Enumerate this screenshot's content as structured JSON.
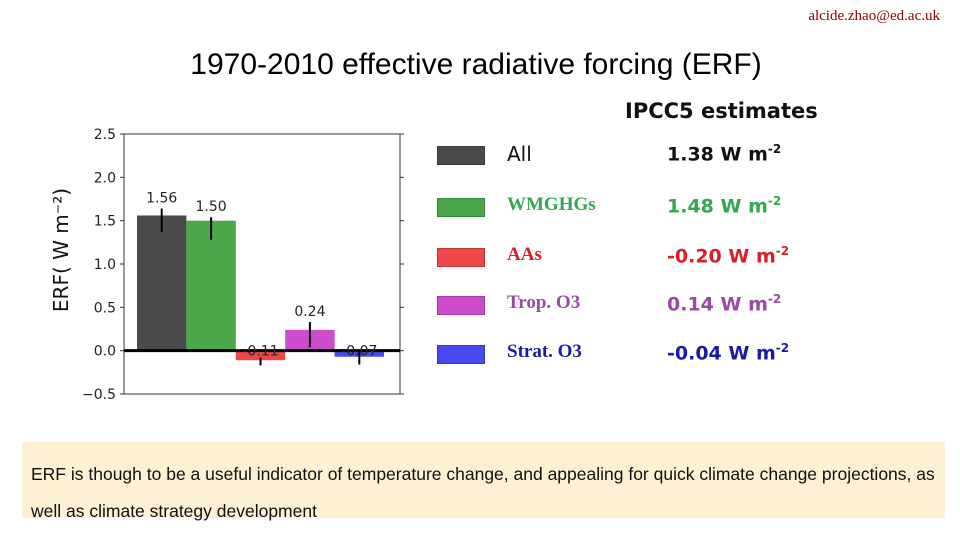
{
  "header": {
    "email": "alcide.zhao@ed.ac.uk",
    "title": "1970-2010 effective radiative forcing (ERF)"
  },
  "chart_data": {
    "type": "bar",
    "ylabel": "ERF( W m⁻²)",
    "ylim": [
      -0.5,
      2.5
    ],
    "yticks": [
      "2.5",
      "2.0",
      "1.5",
      "1.0",
      "0.5",
      "0.0",
      "−0.5"
    ],
    "yticks_values": [
      2.5,
      2.0,
      1.5,
      1.0,
      0.5,
      0.0,
      -0.5
    ],
    "categories": [
      "All",
      "WMGHGs",
      "AAs",
      "Trop. O3",
      "Strat. O3"
    ],
    "values": [
      1.56,
      1.5,
      -0.11,
      0.24,
      -0.07
    ],
    "data_labels": [
      "1.56",
      "1.50",
      "-0.11",
      "0.24",
      "-0.07"
    ],
    "error_ranges": [
      [
        1.37,
        1.64
      ],
      [
        1.28,
        1.54
      ],
      [
        -0.17,
        -0.08
      ],
      [
        0.04,
        0.33
      ],
      [
        -0.16,
        0.0
      ]
    ],
    "colors": [
      "#4a4a4a",
      "#4aa84a",
      "#f04848",
      "#cc4ccc",
      "#4848f0"
    ],
    "grid": false,
    "legend_placement": "right"
  },
  "legend": {
    "heading": "IPCC5 estimates",
    "items": [
      {
        "label": "All",
        "estimate": "1.38 W m",
        "exp": "-2",
        "color": "#111111"
      },
      {
        "label": "WMGHGs",
        "estimate": "1.48  W m",
        "exp": "-2",
        "color": "#2fa84f"
      },
      {
        "label": "AAs",
        "estimate": "-0.20 W m",
        "exp": "-2",
        "color": "#d8202a"
      },
      {
        "label": "Trop. O3",
        "estimate": "0.14 W m",
        "exp": "-2",
        "color": "#9a4aa6"
      },
      {
        "label": "Strat. O3",
        "estimate": "-0.04 W m",
        "exp": "-2",
        "color": "#1a1aaa"
      }
    ]
  },
  "note": {
    "text": "ERF is though to be a useful indicator of temperature change, and appealing for quick climate change projections, as well as climate strategy development"
  }
}
